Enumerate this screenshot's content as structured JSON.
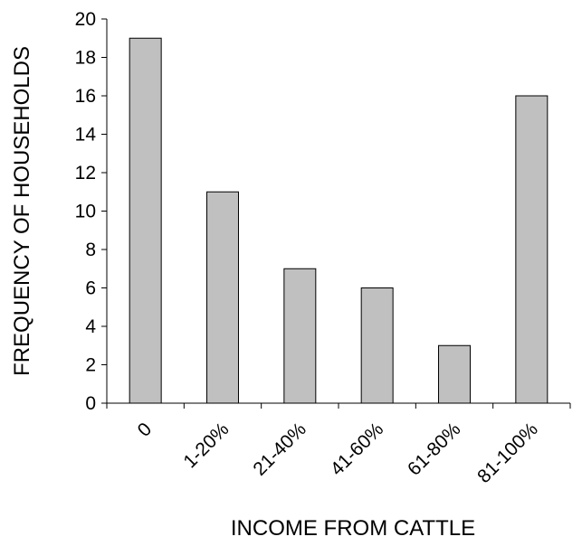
{
  "chart_data": {
    "type": "bar",
    "title": "",
    "xlabel": "INCOME FROM CATTLE",
    "ylabel": "FREQUENCY OF HOUSEHOLDS",
    "categories": [
      "0",
      "1-20%",
      "21-40%",
      "41-60%",
      "61-80%",
      "81-100%"
    ],
    "values": [
      19,
      11,
      7,
      6,
      3,
      16
    ],
    "ylim": [
      0,
      20
    ],
    "yticks": [
      "0",
      "2",
      "4",
      "6",
      "8",
      "10",
      "12",
      "14",
      "16",
      "18",
      "20"
    ],
    "grid": false,
    "legend": "none",
    "colors": {
      "bar_fill": "#c0c0c0",
      "bar_stroke": "#000000",
      "axis": "#000000",
      "background": "#ffffff"
    }
  }
}
